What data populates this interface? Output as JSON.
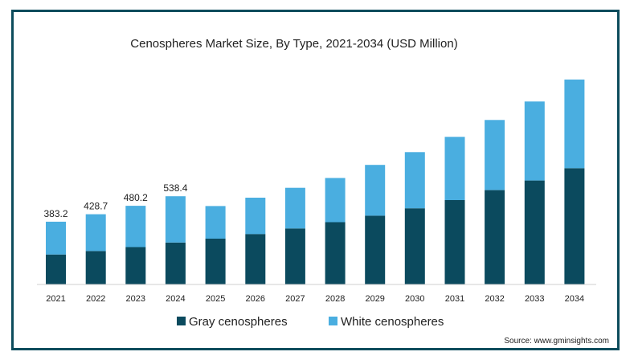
{
  "chart_data": {
    "type": "bar",
    "stacked": true,
    "title": "Cenospheres Market Size, By Type, 2021-2034 (USD Million)",
    "categories": [
      "2021",
      "2022",
      "2023",
      "2024",
      "2025",
      "2026",
      "2027",
      "2028",
      "2029",
      "2030",
      "2031",
      "2032",
      "2033",
      "2034"
    ],
    "series": [
      {
        "name": "Gray cenospheres",
        "color": "#0b4a5e",
        "values": [
          183,
          204,
          228,
          256,
          280,
          308,
          342,
          380,
          420,
          465,
          515,
          576,
          635,
          710
        ]
      },
      {
        "name": "White cenospheres",
        "color": "#4aaee0",
        "values": [
          200.2,
          224.7,
          252.2,
          282.4,
          199,
          222,
          248,
          270,
          310,
          343,
          386,
          428,
          482,
          541
        ]
      }
    ],
    "data_labels": [
      "383.2",
      "428.7",
      "480.2",
      "538.4"
    ],
    "ylim": [
      0,
      1300
    ],
    "legend_position": "bottom",
    "grid": false
  },
  "source": "Source: www.gminsights.com"
}
